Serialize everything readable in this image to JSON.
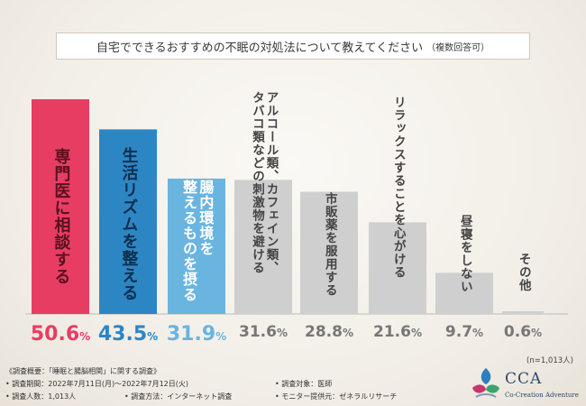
{
  "title": {
    "main": "自宅でできるおすすめの不眠の対処法について教えてください",
    "note": "（複数回答可）"
  },
  "colors": {
    "bars": [
      "#e83d63",
      "#2d86c4",
      "#6ab4e0",
      "#cfcfcf",
      "#cfcfcf",
      "#cfcfcf",
      "#cfcfcf",
      "#cfcfcf"
    ],
    "pct": [
      "#e83d63",
      "#2d86c4",
      "#6ab4e0",
      "#777777",
      "#777777",
      "#777777",
      "#777777",
      "#777777"
    ],
    "labelText": [
      "#5a1020",
      "#0d2f4d",
      "#ffffff",
      "#444444",
      "#444444",
      "#444444",
      "#444444",
      "#444444"
    ]
  },
  "chart_data": {
    "type": "bar",
    "title": "自宅でできるおすすめの不眠の対処法について教えてください（複数回答可）",
    "categories": [
      "専門医に相談する",
      "生活リズムを整える",
      "腸内環境を整えるものを摂る",
      "アルコール類、カフェイン類、タバコ類などの刺激物を避ける",
      "市販薬を服用する",
      "リラックスすることを心がける",
      "昼寝をしない",
      "その他"
    ],
    "values": [
      50.6,
      43.5,
      31.9,
      31.6,
      28.8,
      21.6,
      9.7,
      0.6
    ],
    "value_labels": [
      "50.6",
      "43.5",
      "31.9",
      "31.6",
      "28.8",
      "21.6",
      "9.7",
      "0.6"
    ],
    "unit": "%",
    "ylim": [
      0,
      50.6
    ],
    "display_lines": [
      [
        "専門医に相談する"
      ],
      [
        "生活リズムを整える"
      ],
      [
        "腸内環境を",
        "整えるものを摂る"
      ],
      [
        "アルコール類、カフェイン類、",
        "タバコ類などの刺激物を避ける"
      ],
      [
        "市販薬を服用する"
      ],
      [
        "リラックスすることを心がける"
      ],
      [
        "昼寝をしない"
      ],
      [
        "その他"
      ]
    ]
  },
  "sample_note": "(n=1,013人)",
  "footer": {
    "overview": "《調査概要：「睡眠と腸脳相関」に関する調査》",
    "period": "• 調査期間：2022年7月11日(月)～2022年7月12日(火)",
    "count": "• 調査人数：1,013人",
    "method": "• 調査方法：インターネット調査",
    "target": "• 調査対象：医師",
    "provider": "• モニター提供元：ゼネラルリサーチ"
  },
  "logo": {
    "brand": "CCA",
    "sub": "Co-Creation Adventure"
  }
}
